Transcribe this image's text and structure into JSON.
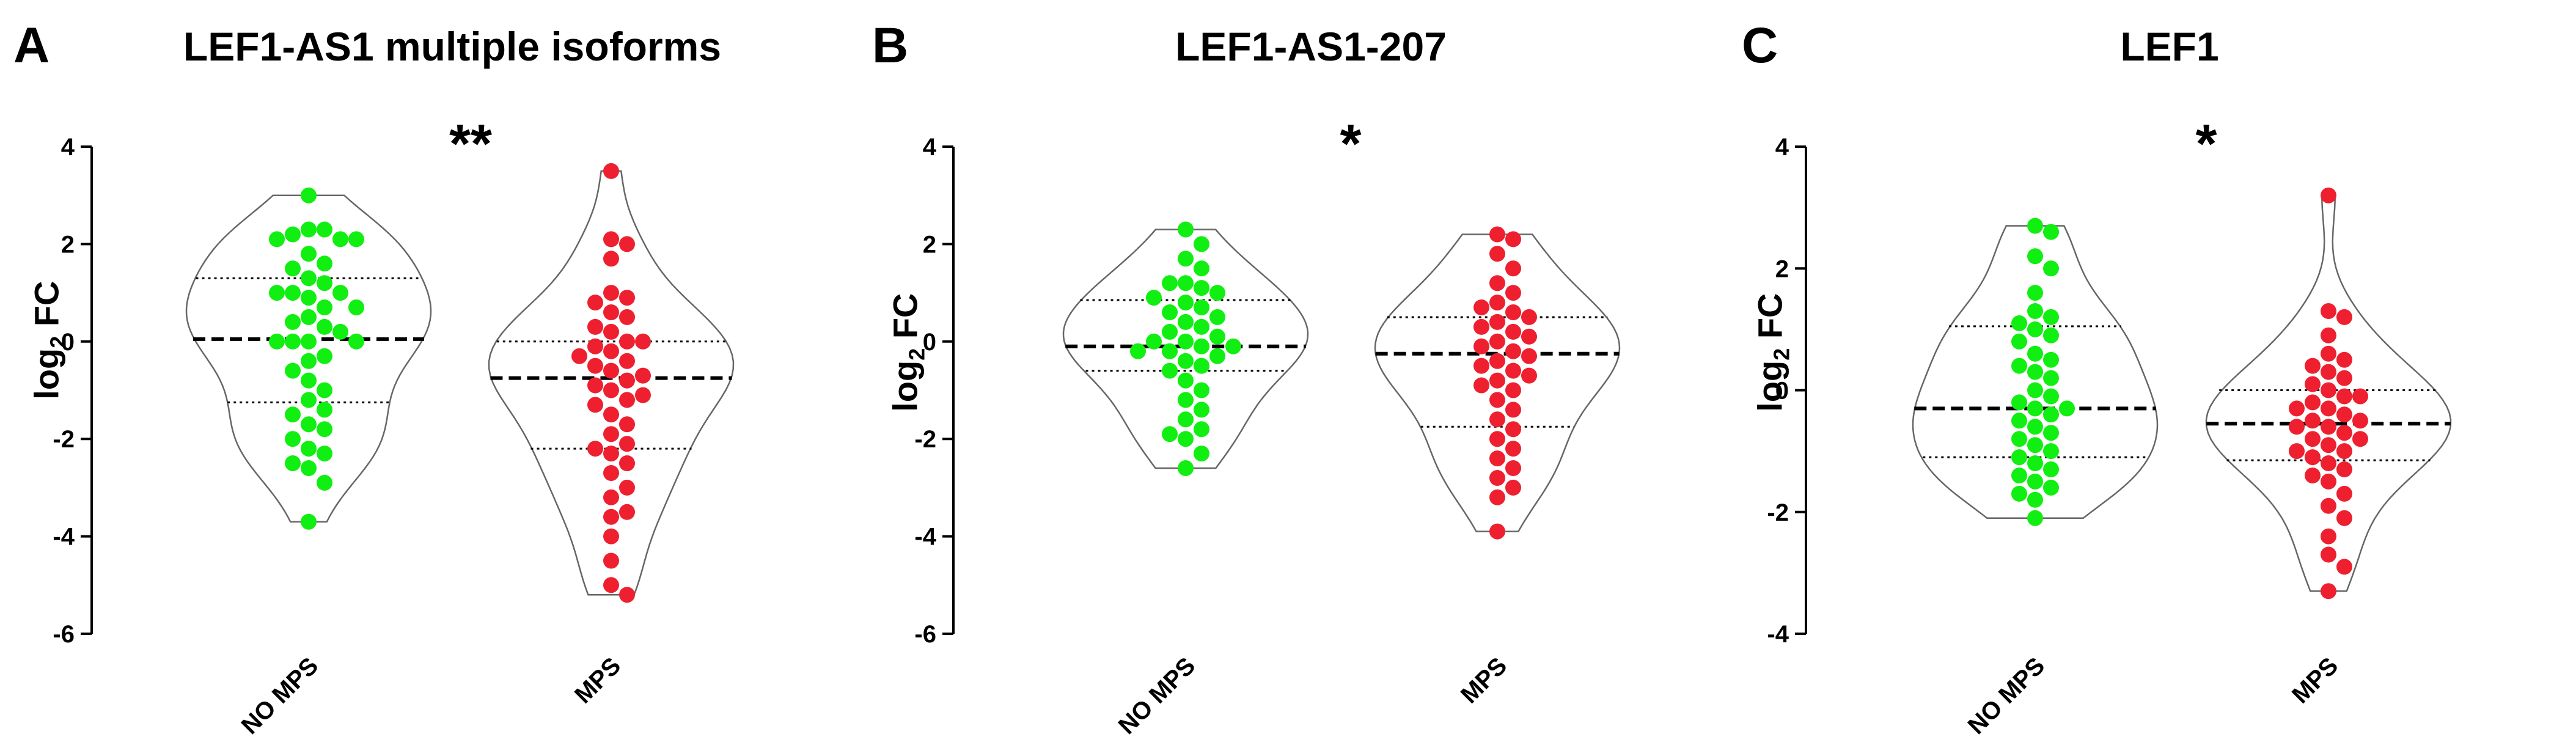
{
  "colors": {
    "no_mps": "#11ee11",
    "mps": "#ee2030",
    "outline": "#666666"
  },
  "panels": [
    {
      "letter": "A",
      "title": "LEF1-AS1 multiple isoforms",
      "ylabel_main": "log",
      "ylabel_sub": "2",
      "ylabel_tail": " FC",
      "significance": "**"
    },
    {
      "letter": "B",
      "title": "LEF1-AS1-207",
      "ylabel_main": "log",
      "ylabel_sub": "2",
      "ylabel_tail": " FC",
      "significance": "*"
    },
    {
      "letter": "C",
      "title": "LEF1",
      "ylabel_main": "log",
      "ylabel_sub": "2",
      "ylabel_tail": " FC",
      "significance": "*"
    }
  ],
  "chart_data": [
    {
      "type": "scatter",
      "subtype": "violin",
      "title": "LEF1-AS1 multiple isoforms",
      "ylabel": "log2 FC",
      "ylim": [
        -6,
        4
      ],
      "yticks": [
        4,
        2,
        0,
        -2,
        -4,
        -6
      ],
      "categories": [
        "NO MPS",
        "MPS"
      ],
      "series": [
        {
          "name": "NO MPS",
          "median": 0.05,
          "q1": -1.25,
          "q3": 1.3,
          "values": [
            3.0,
            2.3,
            2.3,
            2.2,
            2.1,
            2.1,
            2.1,
            1.8,
            1.6,
            1.5,
            1.3,
            1.2,
            1.0,
            1.0,
            1.0,
            0.9,
            0.7,
            0.7,
            0.5,
            0.4,
            0.3,
            0.2,
            0.0,
            0.0,
            0.0,
            0.0,
            -0.3,
            -0.4,
            -0.6,
            -0.8,
            -1.0,
            -1.2,
            -1.4,
            -1.5,
            -1.7,
            -1.8,
            -2.0,
            -2.2,
            -2.3,
            -2.5,
            -2.6,
            -2.9,
            -3.7
          ]
        },
        {
          "name": "MPS",
          "median": -0.75,
          "q1": -2.2,
          "q3": 0.0,
          "values": [
            3.5,
            2.1,
            2.0,
            1.7,
            1.0,
            0.9,
            0.8,
            0.6,
            0.5,
            0.3,
            0.2,
            0.0,
            0.0,
            -0.1,
            -0.2,
            -0.3,
            -0.4,
            -0.5,
            -0.6,
            -0.7,
            -0.8,
            -0.9,
            -1.0,
            -1.1,
            -1.2,
            -1.3,
            -1.5,
            -1.7,
            -1.9,
            -2.1,
            -2.2,
            -2.3,
            -2.5,
            -2.7,
            -3.0,
            -3.2,
            -3.5,
            -3.6,
            -4.0,
            -4.5,
            -5.0,
            -5.2
          ]
        }
      ]
    },
    {
      "type": "scatter",
      "subtype": "violin",
      "title": "LEF1-AS1-207",
      "ylabel": "log2 FC",
      "ylim": [
        -6,
        4
      ],
      "yticks": [
        4,
        2,
        0,
        -2,
        -4,
        -6
      ],
      "categories": [
        "NO MPS",
        "MPS"
      ],
      "series": [
        {
          "name": "NO MPS",
          "median": -0.1,
          "q1": -0.6,
          "q3": 0.85,
          "values": [
            2.3,
            2.0,
            1.7,
            1.5,
            1.2,
            1.2,
            1.1,
            1.0,
            0.9,
            0.8,
            0.7,
            0.6,
            0.5,
            0.4,
            0.3,
            0.2,
            0.1,
            0.0,
            0.0,
            -0.1,
            -0.1,
            -0.2,
            -0.2,
            -0.3,
            -0.4,
            -0.5,
            -0.6,
            -0.8,
            -1.0,
            -1.2,
            -1.4,
            -1.6,
            -1.8,
            -1.9,
            -2.0,
            -2.3,
            -2.6
          ]
        },
        {
          "name": "MPS",
          "median": -0.25,
          "q1": -1.75,
          "q3": 0.5,
          "values": [
            2.2,
            2.1,
            1.8,
            1.5,
            1.2,
            1.0,
            0.8,
            0.7,
            0.6,
            0.5,
            0.4,
            0.3,
            0.2,
            0.1,
            0.0,
            -0.1,
            -0.2,
            -0.3,
            -0.4,
            -0.5,
            -0.6,
            -0.7,
            -0.8,
            -0.9,
            -1.0,
            -1.2,
            -1.4,
            -1.6,
            -1.8,
            -2.0,
            -2.2,
            -2.4,
            -2.6,
            -2.8,
            -3.0,
            -3.2,
            -3.9
          ]
        }
      ]
    },
    {
      "type": "scatter",
      "subtype": "violin",
      "title": "LEF1",
      "ylabel": "log2 FC",
      "ylim": [
        -4,
        4
      ],
      "yticks": [
        4,
        2,
        0,
        -2,
        -4
      ],
      "categories": [
        "NO MPS",
        "MPS"
      ],
      "series": [
        {
          "name": "NO MPS",
          "median": -0.3,
          "q1": -1.1,
          "q3": 1.05,
          "values": [
            2.7,
            2.6,
            2.2,
            2.0,
            1.6,
            1.3,
            1.2,
            1.1,
            1.0,
            0.9,
            0.8,
            0.6,
            0.5,
            0.4,
            0.3,
            0.2,
            0.0,
            -0.1,
            -0.2,
            -0.3,
            -0.3,
            -0.4,
            -0.5,
            -0.6,
            -0.7,
            -0.8,
            -0.9,
            -1.0,
            -1.1,
            -1.2,
            -1.3,
            -1.4,
            -1.5,
            -1.6,
            -1.7,
            -1.8,
            -2.1
          ]
        },
        {
          "name": "MPS",
          "median": -0.55,
          "q1": -1.15,
          "q3": 0.0,
          "values": [
            3.2,
            1.3,
            1.2,
            0.9,
            0.6,
            0.5,
            0.4,
            0.3,
            0.2,
            0.1,
            0.0,
            -0.1,
            -0.1,
            -0.2,
            -0.3,
            -0.3,
            -0.4,
            -0.5,
            -0.5,
            -0.6,
            -0.6,
            -0.7,
            -0.8,
            -0.8,
            -0.9,
            -1.0,
            -1.0,
            -1.1,
            -1.2,
            -1.3,
            -1.4,
            -1.5,
            -1.7,
            -1.9,
            -2.1,
            -2.4,
            -2.7,
            -2.9,
            -3.3
          ]
        }
      ]
    }
  ]
}
